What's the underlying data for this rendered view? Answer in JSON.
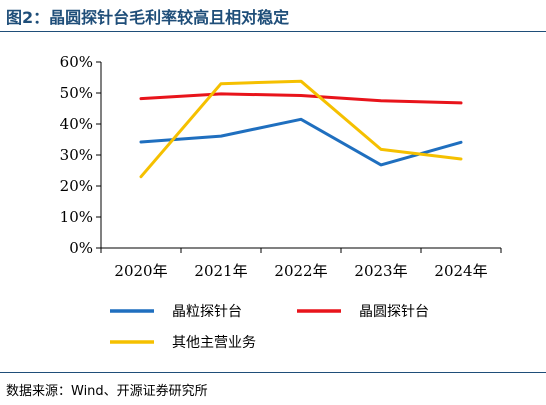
{
  "header": {
    "title": "图2：晶圆探针台毛利率较高且相对稳定"
  },
  "footer": {
    "source": "数据来源：Wind、开源证券研究所"
  },
  "chart_data": {
    "type": "line",
    "title": "图2：晶圆探针台毛利率较高且相对稳定",
    "xlabel": "",
    "ylabel": "",
    "categories": [
      "2020年",
      "2021年",
      "2022年",
      "2023年",
      "2024年"
    ],
    "ylim": [
      0,
      60
    ],
    "yticks": [
      0,
      10,
      20,
      30,
      40,
      50,
      60
    ],
    "ytick_labels": [
      "0%",
      "10%",
      "20%",
      "30%",
      "40%",
      "50%",
      "60%"
    ],
    "grid": false,
    "legend_position": "bottom",
    "series": [
      {
        "name": "晶粒探针台",
        "color": "#1f6fbf",
        "values": [
          34.2,
          36.1,
          41.5,
          26.8,
          34.1
        ]
      },
      {
        "name": "晶圆探针台",
        "color": "#e8141b",
        "values": [
          48.2,
          49.7,
          49.2,
          47.5,
          46.8
        ]
      },
      {
        "name": "其他主营业务",
        "color": "#f5c000",
        "values": [
          23.0,
          53.0,
          53.8,
          31.8,
          28.7
        ]
      }
    ]
  }
}
